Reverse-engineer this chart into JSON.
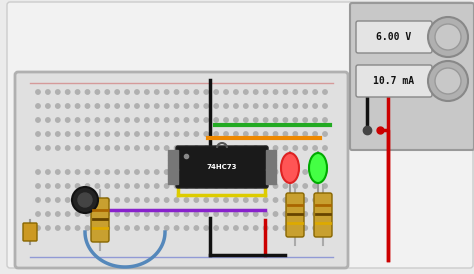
{
  "bg_color": "#ebebeb",
  "breadboard_bg": "#f0f0f0",
  "breadboard_face": "#e8e8e8",
  "power_supply_face": "#d0d0d0",
  "voltage_text": "6.00 V",
  "current_text": "10.7 mA",
  "ic_label": "74HC73",
  "wire_red": "#cc0000",
  "wire_black": "#111111",
  "wire_green": "#22aa22",
  "wire_yellow": "#ddcc00",
  "wire_orange": "#ee8800",
  "wire_purple": "#8822cc",
  "wire_blue": "#3366cc",
  "led_red_color": "#dd2222",
  "led_red_glow": "#ff5555",
  "led_green_color": "#00aa00",
  "led_green_glow": "#44ff44",
  "resistor_body": "#c8a030",
  "resistor_edge": "#886600"
}
